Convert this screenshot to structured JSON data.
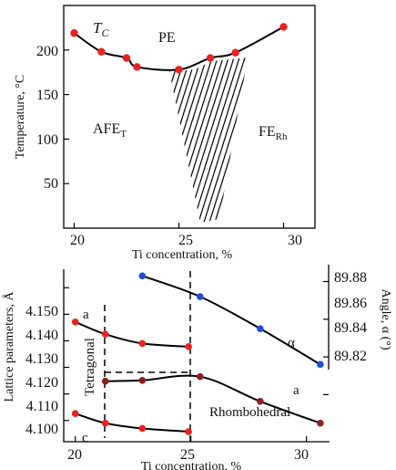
{
  "chart_data": [
    {
      "type": "line",
      "subtype": "phase-diagram",
      "xlabel": "Ti concentration, %",
      "ylabel": "Temperature, °C",
      "xlim": [
        19.5,
        31.5
      ],
      "ylim": [
        0,
        250
      ],
      "x_ticks": [
        "20",
        "25",
        "30"
      ],
      "y_ticks": [
        "50",
        "100",
        "150",
        "200"
      ],
      "grid": false,
      "series": [
        {
          "name": "T_C",
          "color": "#e8231f",
          "x": [
            20.0,
            21.3,
            22.5,
            23.0,
            25.0,
            26.5,
            27.7,
            30.0
          ],
          "y": [
            219,
            198,
            191,
            181,
            178,
            191,
            197,
            226
          ]
        }
      ],
      "curve_label": {
        "main": "T",
        "sub": "C"
      },
      "regions": [
        {
          "main": "PE",
          "sub": ""
        },
        {
          "main": "AFE",
          "sub": "T"
        },
        {
          "main": "FE",
          "sub": "Rh"
        }
      ]
    },
    {
      "type": "line",
      "xlabel": "Ti concentration, %",
      "ylabel": "Lattice parameters, Å",
      "ylabel_right": "Angle, α (°)",
      "xlim": [
        19.5,
        31.0
      ],
      "ylim": [
        4.092,
        4.158
      ],
      "ylim_right": [
        89.795,
        89.888
      ],
      "x_ticks": [
        "20",
        "25",
        "30"
      ],
      "y_ticks": [
        "4.100",
        "4.110",
        "4.120",
        "4.130",
        "4.140",
        "4.150"
      ],
      "y_ticks_right": [
        "89.82",
        "89.84",
        "89.86",
        "89.88"
      ],
      "grid": false,
      "series": [
        {
          "name": "a",
          "axis": "left",
          "color": "#e8231f",
          "x": [
            20.0,
            21.3,
            22.9,
            24.9
          ],
          "y": [
            4.1371,
            4.1325,
            4.129,
            4.1278
          ]
        },
        {
          "name": "c",
          "axis": "left",
          "color": "#e8231f",
          "x": [
            20.0,
            21.3,
            22.9,
            24.9
          ],
          "y": [
            4.1026,
            4.099,
            4.097,
            4.0958
          ]
        },
        {
          "name": "a",
          "axis": "left",
          "color": "#8b1f22",
          "x": [
            21.3,
            22.9,
            25.4,
            28.0,
            30.6
          ],
          "y": [
            4.1148,
            4.1151,
            4.1165,
            4.1072,
            4.099
          ]
        },
        {
          "name": "α",
          "axis": "right",
          "color": "#1f4fd8",
          "x": [
            22.9,
            25.4,
            28.0,
            30.6
          ],
          "y": [
            89.883,
            89.872,
            89.855,
            89.836
          ]
        }
      ],
      "phase_labels": [
        "Tetragonal",
        "Rhombohedral"
      ]
    }
  ]
}
